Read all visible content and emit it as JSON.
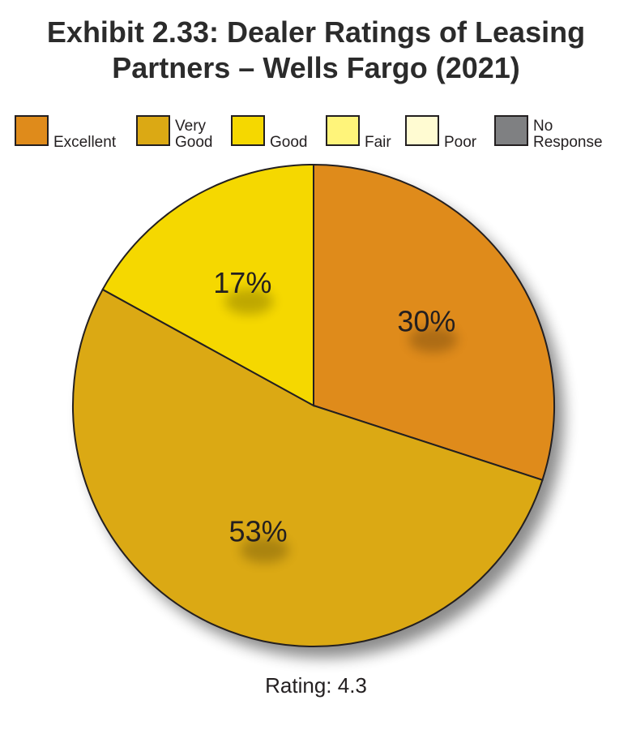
{
  "title_line1": "Exhibit 2.33: Dealer Ratings of Leasing",
  "title_line2": "Partners – Wells Fargo (2021)",
  "footer": "Rating: 4.3",
  "legend": [
    {
      "line1": "",
      "line2": "Excellent",
      "color": "#df8b1b"
    },
    {
      "line1": "Very",
      "line2": "Good",
      "color": "#dba914"
    },
    {
      "line1": "",
      "line2": "Good",
      "color": "#f5d800"
    },
    {
      "line1": "",
      "line2": "Fair",
      "color": "#fff47a"
    },
    {
      "line1": "",
      "line2": "Poor",
      "color": "#fffbd2"
    },
    {
      "line1": "No",
      "line2": "Response",
      "color": "#7f8082"
    }
  ],
  "chart_data": {
    "type": "pie",
    "title": "Exhibit 2.33: Dealer Ratings of Leasing Partners – Wells Fargo (2021)",
    "categories": [
      "Excellent",
      "Very Good",
      "Good",
      "Fair",
      "Poor",
      "No Response"
    ],
    "values": [
      30,
      53,
      17,
      0,
      0,
      0
    ],
    "labels": [
      "30%",
      "53%",
      "17%",
      "",
      "",
      ""
    ],
    "colors": [
      "#df8b1b",
      "#dba914",
      "#f5d800",
      "#fff47a",
      "#fffbd2",
      "#7f8082"
    ],
    "start": "12 o'clock",
    "direction": "clockwise",
    "legend_position": "top"
  }
}
